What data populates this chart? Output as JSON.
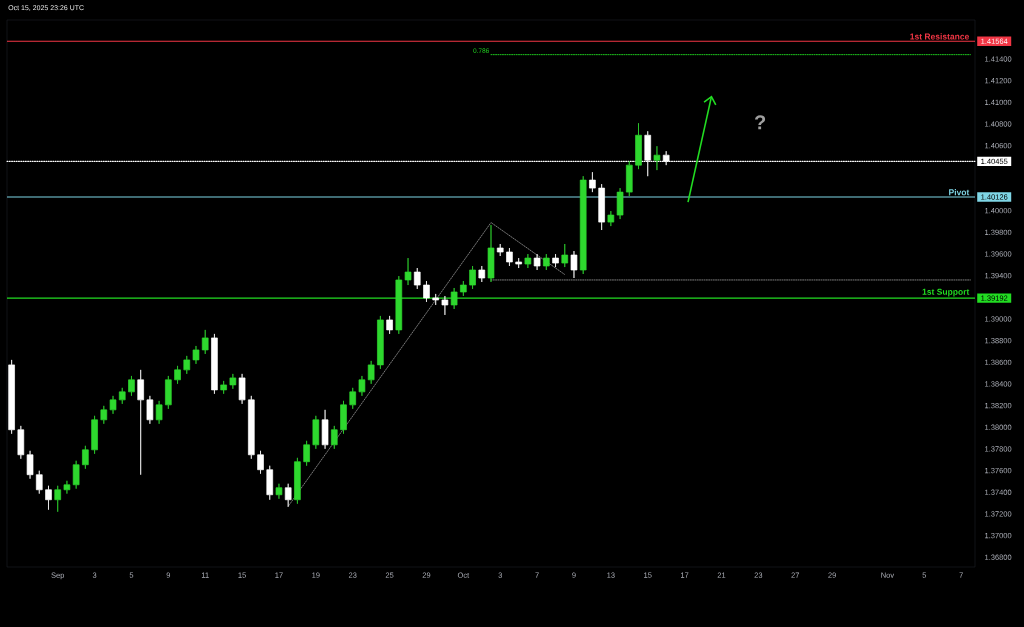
{
  "chart_data": {
    "type": "candlestick",
    "annotations": [
      "Oct 15, 2025 23:26 UTC",
      "0.786",
      "?",
      {
        "text": "1st Resistance",
        "y": 1.41564
      },
      {
        "text": "Pivot",
        "y": 1.40126
      },
      {
        "text": "1st Support",
        "y": 1.39192
      }
    ],
    "categories": [
      null,
      null,
      null,
      null,
      null,
      "Sep",
      null,
      null,
      null,
      "3",
      null,
      null,
      null,
      "5",
      null,
      null,
      null,
      "9",
      null,
      null,
      null,
      "11",
      null,
      null,
      null,
      "15",
      null,
      null,
      null,
      "17",
      null,
      null,
      null,
      "19",
      null,
      null,
      null,
      "23",
      null,
      null,
      null,
      "25",
      null,
      null,
      null,
      "29",
      null,
      null,
      null,
      "Oct",
      null,
      null,
      null,
      "3",
      null,
      null,
      null,
      "7",
      null,
      null,
      null,
      "9",
      null,
      null,
      null,
      "13",
      null,
      null,
      null,
      "15",
      null,
      null,
      null,
      "17",
      null,
      null,
      null,
      "21",
      null,
      null,
      null,
      "23",
      null,
      null,
      null,
      "27",
      null,
      null,
      null,
      "29",
      null,
      null,
      null,
      null,
      null,
      "Nov",
      null,
      null,
      null,
      "5",
      null,
      null,
      null,
      "7",
      null
    ],
    "ylim": [
      1.3671,
      1.4176
    ],
    "yticks": [
      {
        "value": 1.368,
        "label": "1.36800"
      },
      {
        "value": 1.37,
        "label": "1.37000"
      },
      {
        "value": 1.372,
        "label": "1.37200"
      },
      {
        "value": 1.374,
        "label": "1.37400"
      },
      {
        "value": 1.376,
        "label": "1.37600"
      },
      {
        "value": 1.378,
        "label": "1.37800"
      },
      {
        "value": 1.38,
        "label": "1.38000"
      },
      {
        "value": 1.382,
        "label": "1.38200"
      },
      {
        "value": 1.384,
        "label": "1.38400"
      },
      {
        "value": 1.386,
        "label": "1.38600"
      },
      {
        "value": 1.388,
        "label": "1.38800"
      },
      {
        "value": 1.39,
        "label": "1.39000"
      },
      {
        "value": 1.394,
        "label": "1.39400"
      },
      {
        "value": 1.396,
        "label": "1.39600"
      },
      {
        "value": 1.398,
        "label": "1.39800"
      },
      {
        "value": 1.4,
        "label": "1.40000"
      },
      {
        "value": 1.406,
        "label": "1.40600"
      },
      {
        "value": 1.408,
        "label": "1.40800"
      },
      {
        "value": 1.41,
        "label": "1.41000"
      },
      {
        "value": 1.412,
        "label": "1.41200"
      },
      {
        "value": 1.414,
        "label": "1.41400"
      }
    ],
    "ref_lines": [
      {
        "axis": "y",
        "value": 1.41564,
        "label": "1.41564",
        "color": "#f23645"
      },
      {
        "axis": "y",
        "value": 1.40126,
        "label": "1.40126",
        "color": "#7fd6e6"
      },
      {
        "axis": "y",
        "value": 1.39192,
        "label": "1.39192",
        "color": "#22dd22"
      },
      {
        "axis": "y",
        "value": 1.40455,
        "label": "1.40455",
        "color": "#ffffff",
        "line_style": "dotted"
      }
    ],
    "series": [
      {
        "type": "line",
        "color": "#22dd22",
        "line_style": "dotted",
        "values": [
          null,
          null,
          null,
          null,
          null,
          null,
          null,
          null,
          null,
          null,
          null,
          null,
          null,
          null,
          null,
          null,
          null,
          null,
          null,
          null,
          null,
          null,
          null,
          null,
          null,
          null,
          null,
          null,
          null,
          null,
          null,
          null,
          null,
          null,
          null,
          null,
          null,
          null,
          null,
          null,
          null,
          null,
          null,
          null,
          null,
          null,
          null,
          null,
          null,
          null,
          null,
          null,
          1.4144,
          null,
          null,
          null,
          null,
          null,
          null,
          null,
          null,
          null,
          null,
          null,
          null,
          null,
          null,
          null,
          null,
          null,
          null,
          null,
          null,
          null,
          null,
          null,
          null,
          null,
          null,
          null,
          null,
          null,
          null,
          null,
          null,
          null,
          null,
          null,
          null,
          null,
          null,
          null,
          null,
          null,
          null,
          null,
          null,
          null,
          null,
          null,
          null,
          null,
          null,
          null,
          1.4144
        ]
      },
      {
        "type": "line",
        "color": "#8a8a8a",
        "line_style": "dotted",
        "values": [
          null,
          null,
          null,
          null,
          null,
          null,
          null,
          null,
          null,
          null,
          null,
          null,
          null,
          null,
          null,
          null,
          null,
          null,
          null,
          null,
          null,
          null,
          null,
          null,
          null,
          null,
          null,
          null,
          null,
          null,
          1.3727,
          null,
          null,
          null,
          null,
          null,
          null,
          null,
          null,
          null,
          null,
          null,
          null,
          null,
          null,
          null,
          null,
          null,
          null,
          null,
          null,
          null,
          1.3989,
          null,
          null,
          null,
          null,
          null,
          null,
          null,
          1.3941,
          null,
          null,
          null,
          null,
          null,
          null,
          null,
          null,
          null,
          null,
          null,
          null,
          null,
          null,
          null,
          null,
          null,
          null,
          null,
          null,
          null,
          null,
          null,
          null,
          null,
          null,
          null,
          null,
          null,
          null,
          null,
          null,
          null,
          null,
          null,
          null,
          null,
          null,
          null,
          null,
          null,
          null,
          null,
          null
        ]
      },
      {
        "type": "line",
        "color": "#8a8a8a",
        "line_style": "dotted",
        "values": [
          null,
          null,
          null,
          null,
          null,
          null,
          null,
          null,
          null,
          null,
          null,
          null,
          null,
          null,
          null,
          null,
          null,
          null,
          null,
          null,
          null,
          null,
          null,
          null,
          null,
          null,
          null,
          null,
          null,
          null,
          null,
          null,
          null,
          null,
          null,
          null,
          null,
          null,
          null,
          null,
          null,
          null,
          null,
          null,
          null,
          null,
          null,
          null,
          null,
          null,
          null,
          null,
          1.3936,
          null,
          null,
          null,
          null,
          null,
          null,
          null,
          null,
          null,
          null,
          null,
          null,
          null,
          null,
          null,
          null,
          null,
          null,
          null,
          null,
          null,
          null,
          null,
          null,
          null,
          null,
          null,
          null,
          null,
          null,
          null,
          null,
          null,
          null,
          null,
          null,
          null,
          null,
          null,
          null,
          null,
          null,
          null,
          null,
          null,
          null,
          null,
          null,
          null,
          null,
          null,
          1.3936
        ]
      },
      {
        "colors": [
          "#ffffff",
          "#ffffff",
          "#ffffff",
          "#ffffff",
          "#ffffff",
          "#2ed82e",
          "#2ed82e",
          "#2ed82e",
          "#2ed82e",
          "#2ed82e",
          "#2ed82e",
          "#2ed82e",
          "#2ed82e",
          "#2ed82e",
          "#ffffff",
          "#ffffff",
          "#2ed82e",
          "#2ed82e",
          "#2ed82e",
          "#2ed82e",
          "#2ed82e",
          "#2ed82e",
          "#ffffff",
          "#2ed82e",
          "#2ed82e",
          "#ffffff",
          "#ffffff",
          "#ffffff",
          "#ffffff",
          "#2ed82e",
          "#ffffff",
          "#2ed82e",
          "#2ed82e",
          "#2ed82e",
          "#ffffff",
          "#2ed82e",
          "#2ed82e",
          "#2ed82e",
          "#2ed82e",
          "#2ed82e",
          "#2ed82e",
          "#ffffff",
          "#2ed82e",
          "#2ed82e",
          "#ffffff",
          "#ffffff",
          "#ffffff",
          "#ffffff",
          "#2ed82e",
          "#2ed82e",
          "#2ed82e",
          "#ffffff",
          "#2ed82e",
          "#ffffff",
          "#ffffff",
          "#ffffff",
          "#2ed82e",
          "#ffffff",
          "#2ed82e",
          "#ffffff",
          "#2ed82e",
          "#ffffff",
          "#2ed82e",
          "#ffffff",
          "#ffffff",
          "#2ed82e",
          "#2ed82e",
          "#2ed82e",
          "#2ed82e",
          "#ffffff",
          "#2ed82e",
          "#ffffff",
          null,
          null,
          null,
          null,
          null,
          null,
          null,
          null,
          null,
          null,
          null,
          null,
          null,
          null,
          null,
          null,
          null,
          null,
          null,
          null,
          null,
          null,
          null,
          null,
          null,
          null,
          null,
          null,
          null,
          null,
          null,
          null,
          null
        ],
        "ohlc": [
          [
            1.38576,
            1.38622,
            1.3794,
            1.37977
          ],
          [
            1.37977,
            1.38013,
            1.37709,
            1.37746
          ],
          [
            1.37746,
            1.37783,
            1.37525,
            1.37562
          ],
          [
            1.37562,
            1.37599,
            1.37387,
            1.37423
          ],
          [
            1.37423,
            1.3746,
            1.37239,
            1.37331
          ],
          [
            1.37331,
            1.3746,
            1.3722,
            1.37423
          ],
          [
            1.37423,
            1.37506,
            1.37387,
            1.37469
          ],
          [
            1.37469,
            1.37691,
            1.37433,
            1.37654
          ],
          [
            1.37654,
            1.37829,
            1.37617,
            1.37792
          ],
          [
            1.37792,
            1.38106,
            1.37755,
            1.38069
          ],
          [
            1.38069,
            1.38198,
            1.38032,
            1.38161
          ],
          [
            1.38161,
            1.3829,
            1.38124,
            1.38253
          ],
          [
            1.38253,
            1.38364,
            1.38216,
            1.38327
          ],
          [
            1.38327,
            1.38474,
            1.3829,
            1.38438
          ],
          [
            1.38438,
            1.3853,
            1.37562,
            1.38253
          ],
          [
            1.38253,
            1.3829,
            1.38032,
            1.38069
          ],
          [
            1.38069,
            1.38244,
            1.38032,
            1.38207
          ],
          [
            1.38207,
            1.38474,
            1.3817,
            1.38438
          ],
          [
            1.38438,
            1.38567,
            1.38401,
            1.3853
          ],
          [
            1.3853,
            1.38659,
            1.38493,
            1.38622
          ],
          [
            1.38622,
            1.38751,
            1.38585,
            1.38714
          ],
          [
            1.38714,
            1.38899,
            1.38677,
            1.38825
          ],
          [
            1.38825,
            1.38862,
            1.38309,
            1.38345
          ],
          [
            1.38345,
            1.38428,
            1.38309,
            1.38391
          ],
          [
            1.38391,
            1.38493,
            1.38355,
            1.38456
          ],
          [
            1.38456,
            1.38493,
            1.38216,
            1.38253
          ],
          [
            1.38253,
            1.3829,
            1.37709,
            1.37746
          ],
          [
            1.37746,
            1.37783,
            1.37571,
            1.37608
          ],
          [
            1.37608,
            1.37645,
            1.37331,
            1.37377
          ],
          [
            1.37377,
            1.37479,
            1.3734,
            1.37442
          ],
          [
            1.37442,
            1.37479,
            1.37267,
            1.37331
          ],
          [
            1.37331,
            1.37718,
            1.37294,
            1.37682
          ],
          [
            1.37682,
            1.37875,
            1.37645,
            1.37838
          ],
          [
            1.37838,
            1.38106,
            1.37801,
            1.38069
          ],
          [
            1.38069,
            1.38161,
            1.37801,
            1.37838
          ],
          [
            1.37838,
            1.38013,
            1.37801,
            1.37977
          ],
          [
            1.37977,
            1.38244,
            1.3794,
            1.38207
          ],
          [
            1.38207,
            1.38364,
            1.3817,
            1.38327
          ],
          [
            1.38327,
            1.38474,
            1.3829,
            1.38438
          ],
          [
            1.38438,
            1.38613,
            1.38401,
            1.38576
          ],
          [
            1.38576,
            1.39028,
            1.38539,
            1.38991
          ],
          [
            1.38991,
            1.39028,
            1.38862,
            1.38899
          ],
          [
            1.38899,
            1.39396,
            1.38862,
            1.3936
          ],
          [
            1.3936,
            1.39562,
            1.39313,
            1.39433
          ],
          [
            1.39433,
            1.3947,
            1.39277,
            1.39313
          ],
          [
            1.39313,
            1.3935,
            1.39157,
            1.39194
          ],
          [
            1.39194,
            1.39231,
            1.39129,
            1.39175
          ],
          [
            1.39175,
            1.39212,
            1.39037,
            1.39129
          ],
          [
            1.39129,
            1.39286,
            1.39092,
            1.39249
          ],
          [
            1.39249,
            1.3935,
            1.39212,
            1.39313
          ],
          [
            1.39313,
            1.39489,
            1.39277,
            1.39452
          ],
          [
            1.39452,
            1.39489,
            1.39341,
            1.39378
          ],
          [
            1.39378,
            1.39867,
            1.39341,
            1.39655
          ],
          [
            1.39655,
            1.39692,
            1.39581,
            1.39618
          ],
          [
            1.39618,
            1.39655,
            1.39489,
            1.39526
          ],
          [
            1.39526,
            1.39562,
            1.3947,
            1.39507
          ],
          [
            1.39507,
            1.39599,
            1.3947,
            1.39562
          ],
          [
            1.39562,
            1.39599,
            1.39452,
            1.39489
          ],
          [
            1.39489,
            1.39599,
            1.39452,
            1.39562
          ],
          [
            1.39562,
            1.39599,
            1.39479,
            1.39516
          ],
          [
            1.39516,
            1.39692,
            1.39479,
            1.3959
          ],
          [
            1.3959,
            1.39627,
            1.39378,
            1.39452
          ],
          [
            1.39452,
            1.40318,
            1.39415,
            1.40282
          ],
          [
            1.40282,
            1.40355,
            1.40171,
            1.40208
          ],
          [
            1.40208,
            1.40245,
            1.39821,
            1.39894
          ],
          [
            1.39894,
            1.39996,
            1.39857,
            1.39959
          ],
          [
            1.39959,
            1.40208,
            1.39922,
            1.40171
          ],
          [
            1.40171,
            1.40457,
            1.40134,
            1.4042
          ],
          [
            1.4042,
            1.40807,
            1.40383,
            1.40696
          ],
          [
            1.40696,
            1.40733,
            1.40318,
            1.40466
          ],
          [
            1.40466,
            1.40595,
            1.40374,
            1.40512
          ],
          [
            1.40512,
            1.40549,
            1.4042,
            1.40457
          ],
          null,
          null,
          null,
          null,
          null,
          null,
          null,
          null,
          null,
          null,
          null,
          null,
          null,
          null,
          null,
          null,
          null,
          null,
          null,
          null,
          null,
          null,
          null,
          null,
          null,
          null,
          null,
          null,
          null,
          null,
          null,
          null,
          null
        ]
      }
    ]
  }
}
